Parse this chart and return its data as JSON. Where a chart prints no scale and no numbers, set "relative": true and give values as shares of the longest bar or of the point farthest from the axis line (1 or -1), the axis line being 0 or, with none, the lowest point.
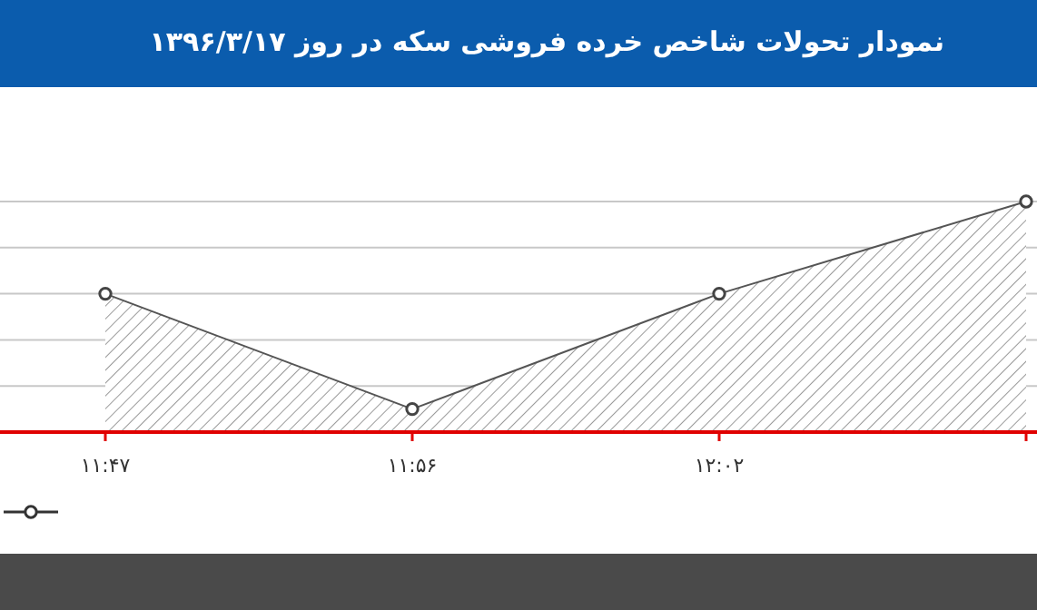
{
  "chart_data": {
    "type": "area",
    "title": "نمودار تحولات شاخص خرده فروشی سکه در روز  ۱۳۹۶/۳/۱۷",
    "categories": [
      "۱۱:۴۷",
      "۱۱:۵۶",
      "۱۲:۰۲",
      null
    ],
    "relative": true,
    "series": [
      {
        "color": "#555555",
        "values": [
          0.6,
          0.1,
          0.6,
          1
        ]
      }
    ],
    "grid": "y",
    "marker": "circle"
  }
}
